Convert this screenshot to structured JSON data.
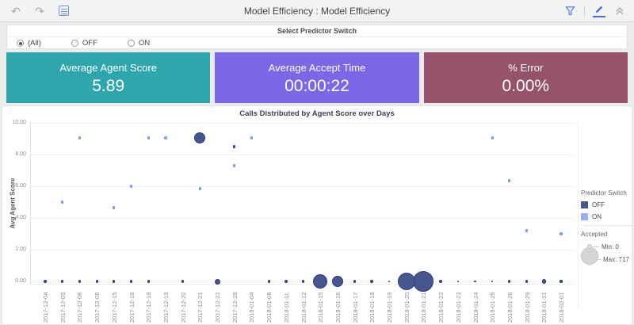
{
  "topbar": {
    "title": "Model Efficiency : Model Efficiency"
  },
  "filter": {
    "title": "Select Predictor Switch",
    "options": [
      {
        "label": "(All)",
        "selected": true
      },
      {
        "label": "OFF",
        "selected": false
      },
      {
        "label": "ON",
        "selected": false
      }
    ]
  },
  "kpis": [
    {
      "label": "Average Agent Score",
      "value": "5.89",
      "color": "#2fa6ab"
    },
    {
      "label": "Average Accept Time",
      "value": "00:00:22",
      "color": "#7c67e8"
    },
    {
      "label": "% Error",
      "value": "0.00%",
      "color": "#94536b"
    }
  ],
  "chart_data": {
    "type": "scatter",
    "title": "Calls Distributed by Agent Score over Days",
    "xlabel": "",
    "ylabel": "Avg Agent Score",
    "ylim": [
      0,
      10
    ],
    "grid": true,
    "legend_position": "right",
    "legend_title": "Predictor Switch",
    "yticks": [
      {
        "v": 0,
        "label": "0.00"
      },
      {
        "v": 2,
        "label": "2.00"
      },
      {
        "v": 4,
        "label": "4.00"
      },
      {
        "v": 6,
        "label": "6.00"
      },
      {
        "v": 8,
        "label": "8.00"
      },
      {
        "v": 10,
        "label": "10.00"
      }
    ],
    "categories": [
      "2017-12-04",
      "2017-12-05",
      "2017-12-06",
      "2017-12-08",
      "2017-12-15",
      "2017-12-16",
      "2017-12-18",
      "2017-12-19",
      "2017-12-20",
      "2017-12-21",
      "2017-12-22",
      "2017-12-28",
      "2018-01-04",
      "2018-01-08",
      "2018-01-11",
      "2018-01-12",
      "2018-01-15",
      "2018-01-16",
      "2018-01-17",
      "2018-01-18",
      "2018-01-19",
      "2018-01-20",
      "2018-01-21",
      "2018-01-22",
      "2018-01-23",
      "2018-01-24",
      "2018-01-25",
      "2018-01-26",
      "2018-01-29",
      "2018-01-31",
      "2018-02-01"
    ],
    "series": [
      {
        "name": "OFF",
        "color": "#47568f",
        "stroke": "#2d3c77",
        "points": [
          {
            "x": "2017-12-21",
            "y": 9.05,
            "r": 7
          },
          {
            "x": "2017-12-28",
            "y": 8.5,
            "r": 1.6
          },
          {
            "x": "2017-12-04",
            "y": 0,
            "r": 1.6
          },
          {
            "x": "2017-12-05",
            "y": 0,
            "r": 1.6
          },
          {
            "x": "2017-12-06",
            "y": 0,
            "r": 1.6
          },
          {
            "x": "2017-12-08",
            "y": 0,
            "r": 1.6
          },
          {
            "x": "2017-12-15",
            "y": 0,
            "r": 1.6
          },
          {
            "x": "2017-12-16",
            "y": 0,
            "r": 1.6
          },
          {
            "x": "2017-12-18",
            "y": 0,
            "r": 1.6
          },
          {
            "x": "2017-12-20",
            "y": 0,
            "r": 1.6
          },
          {
            "x": "2017-12-22",
            "y": 0,
            "r": 3.5
          },
          {
            "x": "2018-01-08",
            "y": 0,
            "r": 1.6
          },
          {
            "x": "2018-01-11",
            "y": 0,
            "r": 2.2
          },
          {
            "x": "2018-01-12",
            "y": 0,
            "r": 1.6
          },
          {
            "x": "2018-01-15",
            "y": 0,
            "r": 9
          },
          {
            "x": "2018-01-16",
            "y": 0,
            "r": 7
          },
          {
            "x": "2018-01-17",
            "y": 0,
            "r": 1.6
          },
          {
            "x": "2018-01-18",
            "y": 0,
            "r": 2.2
          },
          {
            "x": "2018-01-19",
            "y": 0,
            "r": 1.3
          },
          {
            "x": "2018-01-20",
            "y": 0,
            "r": 11
          },
          {
            "x": "2018-01-21",
            "y": 0,
            "r": 13
          },
          {
            "x": "2018-01-22",
            "y": 0,
            "r": 2.2
          },
          {
            "x": "2018-01-23",
            "y": 0,
            "r": 1.3
          },
          {
            "x": "2018-01-24",
            "y": 0,
            "r": 1.3
          },
          {
            "x": "2018-01-25",
            "y": 0,
            "r": 1.3
          },
          {
            "x": "2018-01-26",
            "y": 0,
            "r": 1.6
          },
          {
            "x": "2018-01-29",
            "y": 0,
            "r": 1.6
          },
          {
            "x": "2018-01-31",
            "y": 0,
            "r": 2.6
          },
          {
            "x": "2018-02-01",
            "y": 0,
            "r": 1.6
          }
        ]
      },
      {
        "name": "ON",
        "color": "#9badf4",
        "stroke": "#7388e8",
        "points": [
          {
            "x": "2017-12-05",
            "y": 5.0,
            "r": 1.6
          },
          {
            "x": "2017-12-06",
            "y": 9.05,
            "r": 1.6
          },
          {
            "x": "2017-12-15",
            "y": 4.65,
            "r": 1.6
          },
          {
            "x": "2017-12-16",
            "y": 6.0,
            "r": 1.6
          },
          {
            "x": "2017-12-18",
            "y": 9.05,
            "r": 1.6
          },
          {
            "x": "2017-12-19",
            "y": 9.05,
            "r": 1.8
          },
          {
            "x": "2017-12-21",
            "y": 5.85,
            "r": 1.6
          },
          {
            "x": "2017-12-28",
            "y": 7.3,
            "r": 1.6
          },
          {
            "x": "2018-01-04",
            "y": 9.05,
            "r": 1.6
          },
          {
            "x": "2018-01-25",
            "y": 9.05,
            "r": 1.6
          },
          {
            "x": "2018-01-26",
            "y": 6.35,
            "r": 1.6
          },
          {
            "x": "2018-01-29",
            "y": 3.2,
            "r": 1.8
          },
          {
            "x": "2018-02-01",
            "y": 3.0,
            "r": 1.8
          }
        ]
      }
    ],
    "size_legend": {
      "label": "Accepted",
      "min_label": "Min: 0",
      "max_label": "Max: 717"
    }
  }
}
